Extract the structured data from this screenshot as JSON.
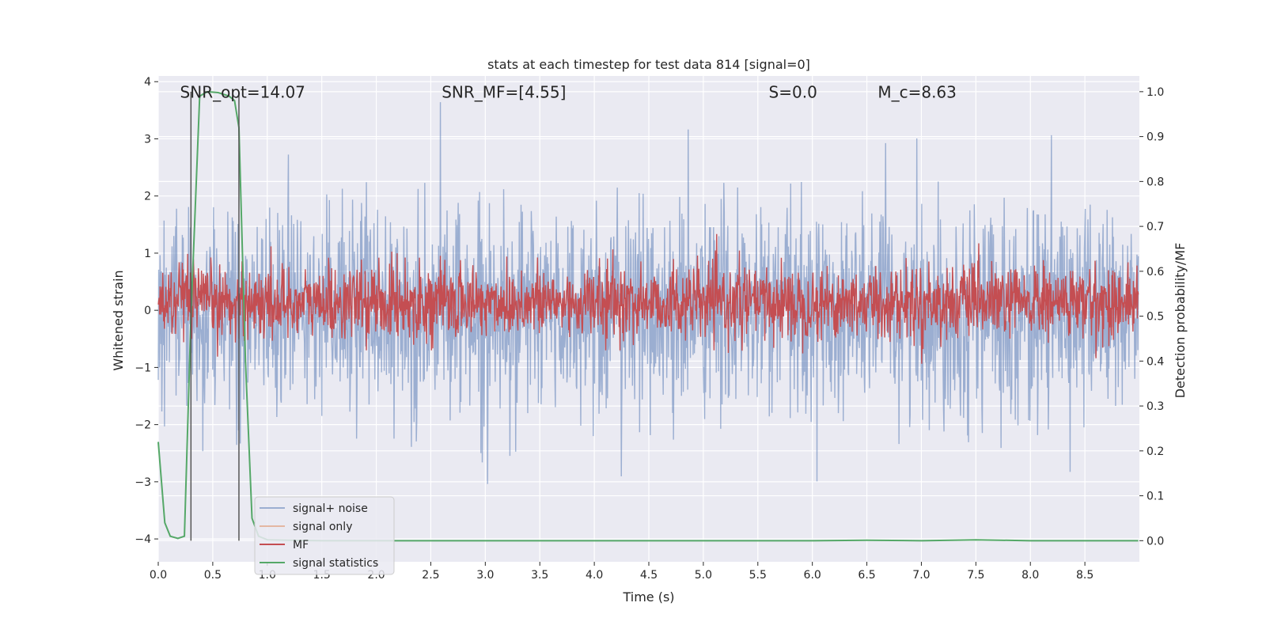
{
  "chart_data": {
    "type": "line",
    "title": "stats at each timestep for test data 814 [signal=0]",
    "xlabel": "Time (s)",
    "ylabel": "Whitened strain",
    "ylabel_right": "Detection probability/MF",
    "xlim": [
      0.0,
      9.0
    ],
    "ylim": [
      -4.4,
      4.1
    ],
    "ylim_right": [
      -0.047,
      1.035
    ],
    "xticks": [
      0.0,
      0.5,
      1.0,
      1.5,
      2.0,
      2.5,
      3.0,
      3.5,
      4.0,
      4.5,
      5.0,
      5.5,
      6.0,
      6.5,
      7.0,
      7.5,
      8.0,
      8.5
    ],
    "xtick_labels": [
      "0.0",
      "0.5",
      "1.0",
      "1.5",
      "2.0",
      "2.5",
      "3.0",
      "3.5",
      "4.0",
      "4.5",
      "5.0",
      "5.5",
      "6.0",
      "6.5",
      "7.0",
      "7.5",
      "8.0",
      "8.5"
    ],
    "yticks": [
      -4,
      -3,
      -2,
      -1,
      0,
      1,
      2,
      3,
      4
    ],
    "ytick_labels": [
      "−4",
      "−3",
      "−2",
      "−1",
      "0",
      "1",
      "2",
      "3",
      "4"
    ],
    "yticks_right": [
      0.0,
      0.1,
      0.2,
      0.3,
      0.4,
      0.5,
      0.6,
      0.7,
      0.8,
      0.9,
      1.0
    ],
    "ytick_labels_right": [
      "0.0",
      "0.1",
      "0.2",
      "0.3",
      "0.4",
      "0.5",
      "0.6",
      "0.7",
      "0.8",
      "0.9",
      "1.0"
    ],
    "grid": true,
    "legend_position": "lower-left",
    "annotations": [
      {
        "text": "SNR_opt=14.07",
        "x": 0.2,
        "y": 3.8,
        "axis": "left"
      },
      {
        "text": "SNR_MF=[4.55]",
        "x": 2.6,
        "y": 3.8,
        "axis": "left"
      },
      {
        "text": "S=0.0",
        "x": 5.6,
        "y": 3.8,
        "axis": "left"
      },
      {
        "text": "M_c=8.63",
        "x": 6.6,
        "y": 3.8,
        "axis": "left"
      }
    ],
    "vertical_lines": [
      0.3,
      0.74
    ],
    "series": [
      {
        "name": "signal+ noise",
        "color": "#4c72b0",
        "alpha": 0.5,
        "axis": "left",
        "kind": "noise",
        "sigma": 0.9,
        "samples": 2200,
        "duration": 8.99
      },
      {
        "name": "signal only",
        "color": "#dd8452",
        "alpha": 0.5,
        "axis": "left",
        "kind": "flat",
        "values": []
      },
      {
        "name": "MF",
        "color": "#c44e52",
        "axis": "right",
        "kind": "mf",
        "mean": 0.53,
        "spread": 0.04,
        "samples": 2200,
        "duration": 8.99
      },
      {
        "name": "signal statistics",
        "color": "#55a868",
        "axis": "right",
        "x": [
          0.0,
          0.06,
          0.11,
          0.18,
          0.24,
          0.3,
          0.38,
          0.45,
          0.55,
          0.65,
          0.7,
          0.74,
          0.8,
          0.86,
          0.92,
          1.0,
          1.2,
          1.5,
          2.0,
          3.0,
          4.0,
          5.0,
          6.0,
          6.5,
          7.0,
          7.5,
          8.0,
          8.5,
          8.99
        ],
        "y": [
          0.22,
          0.04,
          0.01,
          0.005,
          0.01,
          0.5,
          0.99,
          1.0,
          0.998,
          0.99,
          0.98,
          0.92,
          0.4,
          0.05,
          0.01,
          0.002,
          0.001,
          0.0,
          0.0,
          0.0,
          0.0,
          0.0,
          0.0,
          0.001,
          0.0,
          0.002,
          0.0,
          0.0,
          0.0
        ]
      }
    ]
  }
}
